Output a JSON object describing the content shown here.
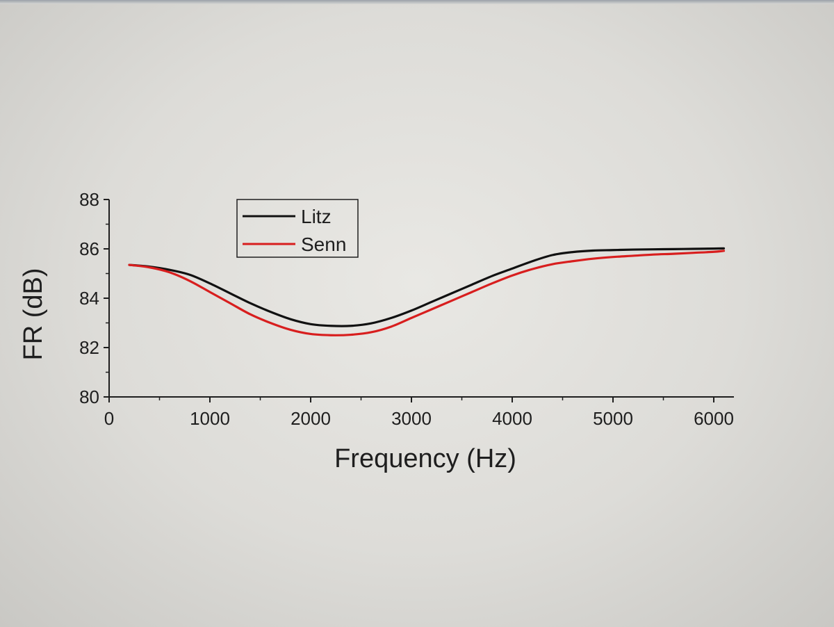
{
  "chart_data": {
    "type": "line",
    "xlabel": "Frequency (Hz)",
    "ylabel": "FR (dB)",
    "xlim": [
      0,
      6200
    ],
    "ylim": [
      80,
      88
    ],
    "xticks": [
      0,
      1000,
      2000,
      3000,
      4000,
      5000,
      6000
    ],
    "yticks": [
      80,
      82,
      84,
      86,
      88
    ],
    "legend_position": "top-left",
    "series": [
      {
        "name": "Litz",
        "color": "#111111",
        "x": [
          200,
          400,
          600,
          800,
          1000,
          1200,
          1400,
          1600,
          1800,
          2000,
          2200,
          2400,
          2600,
          2800,
          3000,
          3200,
          3400,
          3600,
          3800,
          4000,
          4200,
          4400,
          4600,
          4800,
          5000,
          5200,
          5400,
          5600,
          5800,
          6000,
          6100
        ],
        "y": [
          85.35,
          85.28,
          85.15,
          84.95,
          84.6,
          84.2,
          83.8,
          83.45,
          83.15,
          82.95,
          82.88,
          82.88,
          82.98,
          83.2,
          83.5,
          83.85,
          84.2,
          84.55,
          84.9,
          85.2,
          85.5,
          85.75,
          85.87,
          85.93,
          85.95,
          85.97,
          85.98,
          85.99,
          86.0,
          86.01,
          86.02
        ]
      },
      {
        "name": "Senn",
        "color": "#d81e1e",
        "x": [
          200,
          400,
          600,
          800,
          1000,
          1200,
          1400,
          1600,
          1800,
          2000,
          2200,
          2400,
          2600,
          2800,
          3000,
          3200,
          3400,
          3600,
          3800,
          4000,
          4200,
          4400,
          4600,
          4800,
          5000,
          5200,
          5400,
          5600,
          5800,
          6000,
          6100
        ],
        "y": [
          85.35,
          85.25,
          85.05,
          84.7,
          84.25,
          83.8,
          83.35,
          83.0,
          82.72,
          82.55,
          82.5,
          82.52,
          82.62,
          82.85,
          83.2,
          83.55,
          83.9,
          84.25,
          84.6,
          84.92,
          85.18,
          85.38,
          85.5,
          85.6,
          85.67,
          85.72,
          85.77,
          85.8,
          85.84,
          85.88,
          85.92
        ]
      }
    ]
  }
}
